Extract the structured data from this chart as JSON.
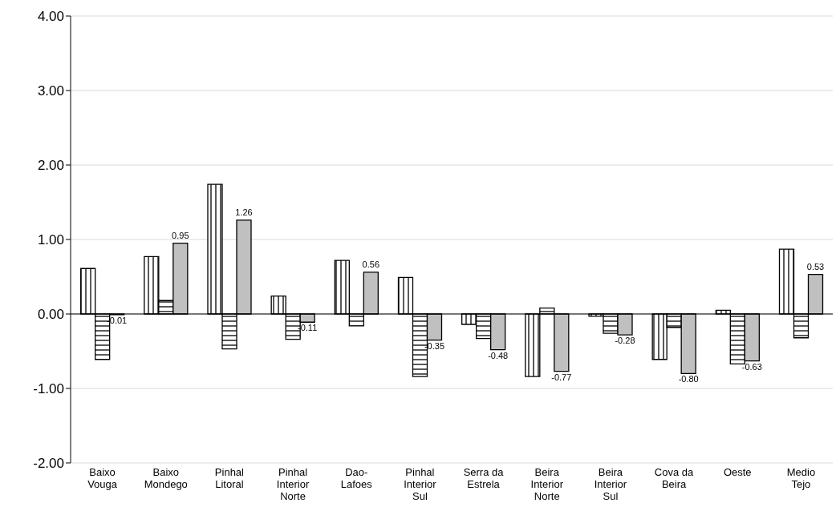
{
  "chart_data": {
    "type": "bar",
    "categories": [
      "Baixo Vouga",
      "Baixo Mondego",
      "Pinhal Litoral",
      "Pinhal Interior Norte",
      "Dao-Lafoes",
      "Pinhal Interior Sul",
      "Serra da Estrela",
      "Beira Interior Norte",
      "Beira Interior Sul",
      "Cova da Beira",
      "Oeste",
      "Medio Tejo"
    ],
    "series": [
      {
        "color": "#000000",
        "values": [
          0.61,
          0.77,
          1.74,
          0.24,
          0.72,
          0.49,
          -0.14,
          -0.84,
          -0.03,
          -0.61,
          0.05,
          0.87
        ]
      },
      {
        "color": "#000000",
        "values": [
          -0.61,
          0.18,
          -0.47,
          -0.34,
          -0.16,
          -0.84,
          -0.33,
          0.08,
          -0.26,
          -0.18,
          -0.67,
          -0.32
        ]
      },
      {
        "color": "#c0c0c0",
        "values": [
          -0.01,
          0.95,
          1.26,
          -0.11,
          0.56,
          -0.35,
          -0.48,
          -0.77,
          -0.28,
          -0.8,
          -0.63,
          0.53
        ],
        "value_labels": [
          "-0.01",
          "0.95",
          "1.26",
          "-0.11",
          "0.56",
          "-0.35",
          "-0.48",
          "-0.77",
          "-0.28",
          "-0.80",
          "-0.63",
          "0.53"
        ]
      }
    ],
    "ylim": [
      -2,
      4
    ],
    "yticks": [
      {
        "value": -2,
        "label": "-2.00"
      },
      {
        "value": -1,
        "label": "-1.00"
      },
      {
        "value": 0,
        "label": "0.00"
      },
      {
        "value": 1,
        "label": "1.00"
      },
      {
        "value": 2,
        "label": "2.00"
      },
      {
        "value": 3,
        "label": "3.00"
      },
      {
        "value": 4,
        "label": "4.00"
      }
    ],
    "grid": "y",
    "legend": false
  }
}
